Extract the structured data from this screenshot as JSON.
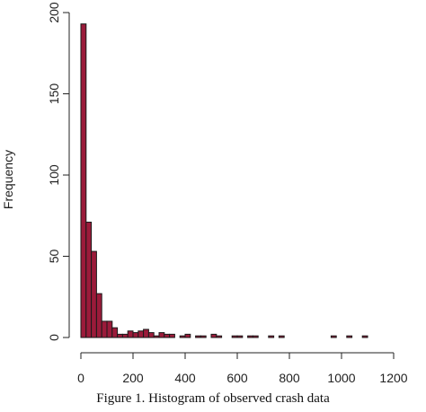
{
  "caption": "Figure 1. Histogram of observed crash data",
  "chart_data": {
    "type": "bar",
    "ylabel": "Frequency",
    "xlabel": "",
    "bin_width": 20,
    "xlim": [
      0,
      1200
    ],
    "ylim": [
      0,
      200
    ],
    "x_ticks": [
      0,
      200,
      400,
      600,
      800,
      1000,
      1200
    ],
    "y_ticks": [
      0,
      50,
      100,
      150,
      200
    ],
    "bar_fill": "#9b1b3a",
    "bar_stroke": "#1a1a1a",
    "bins": [
      {
        "start": 0,
        "count": 193
      },
      {
        "start": 20,
        "count": 71
      },
      {
        "start": 40,
        "count": 53
      },
      {
        "start": 60,
        "count": 27
      },
      {
        "start": 80,
        "count": 10
      },
      {
        "start": 100,
        "count": 10
      },
      {
        "start": 120,
        "count": 6
      },
      {
        "start": 140,
        "count": 2
      },
      {
        "start": 160,
        "count": 2
      },
      {
        "start": 180,
        "count": 4
      },
      {
        "start": 200,
        "count": 3
      },
      {
        "start": 220,
        "count": 4
      },
      {
        "start": 240,
        "count": 5
      },
      {
        "start": 260,
        "count": 3
      },
      {
        "start": 280,
        "count": 1
      },
      {
        "start": 300,
        "count": 3
      },
      {
        "start": 320,
        "count": 2
      },
      {
        "start": 340,
        "count": 2
      },
      {
        "start": 380,
        "count": 1
      },
      {
        "start": 400,
        "count": 2
      },
      {
        "start": 440,
        "count": 1
      },
      {
        "start": 460,
        "count": 1
      },
      {
        "start": 500,
        "count": 2
      },
      {
        "start": 520,
        "count": 1
      },
      {
        "start": 580,
        "count": 1
      },
      {
        "start": 600,
        "count": 1
      },
      {
        "start": 640,
        "count": 1
      },
      {
        "start": 660,
        "count": 1
      },
      {
        "start": 720,
        "count": 1
      },
      {
        "start": 760,
        "count": 1
      },
      {
        "start": 960,
        "count": 1
      },
      {
        "start": 1020,
        "count": 1
      },
      {
        "start": 1080,
        "count": 1
      }
    ]
  }
}
